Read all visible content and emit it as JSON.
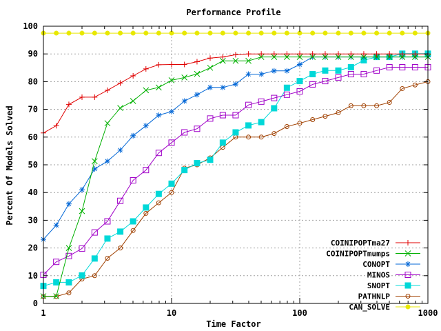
{
  "chart_data": {
    "type": "line",
    "title": "Performance Profile",
    "xlabel": "Time Factor",
    "ylabel": "Percent Of Models Solved",
    "x_scale": "log",
    "xlim": [
      1,
      1000
    ],
    "ylim": [
      0,
      100
    ],
    "x_ticks": [
      1,
      10,
      100,
      1000
    ],
    "x_tick_labels": [
      "1",
      "10",
      "100",
      "1000"
    ],
    "y_ticks": [
      0,
      10,
      20,
      30,
      40,
      50,
      60,
      70,
      80,
      90,
      100
    ],
    "y_tick_labels": [
      "0",
      "10",
      "20",
      "30",
      "40",
      "50",
      "60",
      "70",
      "80",
      "90",
      "100"
    ],
    "grid": true,
    "legend_position": "bottom-right",
    "x": [
      1,
      1.26,
      1.58,
      2,
      2.51,
      3.16,
      3.98,
      5.01,
      6.31,
      7.94,
      10,
      12.6,
      15.8,
      20,
      25.1,
      31.6,
      39.8,
      50.1,
      63.1,
      79.4,
      100,
      126,
      158,
      200,
      251,
      316,
      398,
      501,
      631,
      794,
      1000
    ],
    "series": [
      {
        "name": "COINIPOPTma27",
        "color": "#e00000",
        "marker": "plus",
        "values": [
          61.5,
          64.1,
          71.8,
          74.4,
          74.4,
          76.9,
          79.5,
          82.1,
          84.6,
          86.1,
          86.2,
          86.2,
          87.2,
          88.5,
          88.9,
          89.7,
          90.0,
          90.0,
          90.0,
          90.0,
          90.0,
          90.0,
          90.0,
          90.0,
          90.0,
          90.0,
          90.0,
          90.0,
          90.0,
          90.0,
          90.0
        ]
      },
      {
        "name": "COINIPOPTmumps",
        "color": "#00b000",
        "marker": "x",
        "values": [
          2.6,
          2.6,
          20.0,
          33.3,
          51.3,
          65.0,
          70.5,
          73.0,
          76.9,
          77.9,
          80.5,
          81.5,
          82.8,
          85.0,
          87.5,
          87.5,
          87.5,
          88.9,
          88.9,
          88.9,
          88.9,
          88.9,
          88.9,
          88.9,
          88.9,
          88.9,
          88.9,
          88.9,
          88.9,
          88.9,
          88.9
        ]
      },
      {
        "name": "CONOPT",
        "color": "#0066d6",
        "marker": "star",
        "values": [
          23.1,
          28.2,
          35.9,
          41.0,
          48.5,
          51.3,
          55.3,
          60.5,
          64.1,
          67.9,
          69.2,
          73.0,
          75.3,
          77.9,
          77.9,
          79.1,
          82.7,
          82.7,
          83.9,
          83.9,
          86.2,
          88.9,
          88.9,
          88.9,
          88.9,
          88.9,
          88.9,
          88.9,
          88.9,
          88.9,
          88.9
        ]
      },
      {
        "name": "MINOS",
        "color": "#a000c8",
        "marker": "square",
        "values": [
          10.3,
          15.0,
          17.1,
          19.8,
          25.6,
          29.6,
          37.0,
          44.4,
          48.1,
          54.3,
          58.0,
          61.7,
          63.0,
          66.7,
          67.9,
          67.9,
          71.6,
          72.8,
          74.1,
          75.3,
          76.5,
          79.0,
          80.2,
          81.5,
          82.7,
          82.7,
          84.0,
          85.2,
          85.2,
          85.2,
          85.2
        ]
      },
      {
        "name": "SNOPT",
        "color": "#00d8d8",
        "marker": "square-filled",
        "values": [
          6.3,
          7.6,
          7.6,
          10.1,
          16.2,
          23.4,
          25.9,
          29.6,
          34.6,
          39.5,
          43.2,
          48.1,
          50.6,
          51.8,
          58.0,
          61.7,
          64.2,
          65.4,
          70.4,
          77.8,
          80.2,
          82.7,
          84.0,
          84.0,
          85.2,
          87.7,
          88.9,
          88.9,
          90.1,
          90.1,
          90.1
        ]
      },
      {
        "name": "PATHNLP",
        "color": "#a04000",
        "marker": "circle",
        "values": [
          2.5,
          2.5,
          3.8,
          8.8,
          10.0,
          16.3,
          20.0,
          26.3,
          32.5,
          36.3,
          40.0,
          48.8,
          50.0,
          52.5,
          56.3,
          60.0,
          60.0,
          60.0,
          61.3,
          63.8,
          65.0,
          66.3,
          67.5,
          68.8,
          71.3,
          71.3,
          71.3,
          72.5,
          77.5,
          78.8,
          80.0
        ]
      },
      {
        "name": "CAN_SOLVE",
        "color": "#e8e800",
        "marker": "circle-filled",
        "values": [
          97.5,
          97.5,
          97.5,
          97.5,
          97.5,
          97.5,
          97.5,
          97.5,
          97.5,
          97.5,
          97.5,
          97.5,
          97.5,
          97.5,
          97.5,
          97.5,
          97.5,
          97.5,
          97.5,
          97.5,
          97.5,
          97.5,
          97.5,
          97.5,
          97.5,
          97.5,
          97.5,
          97.5,
          97.5,
          97.5,
          97.5
        ]
      }
    ]
  }
}
